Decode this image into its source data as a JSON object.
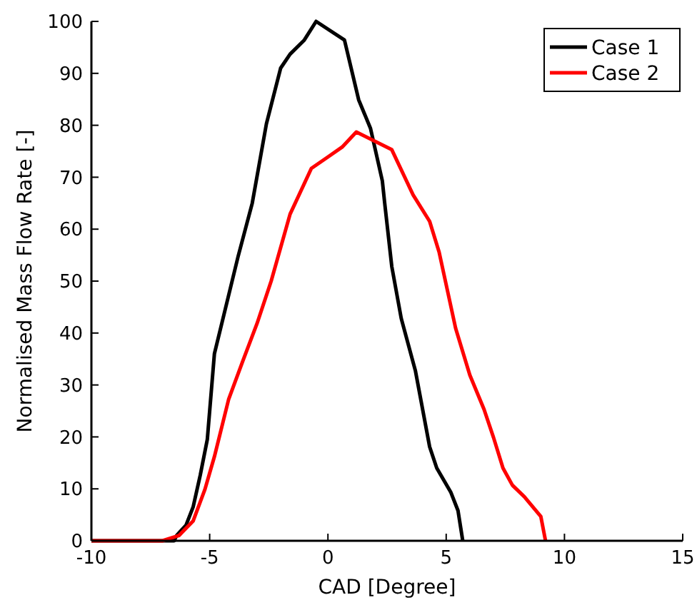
{
  "chart_data": {
    "type": "line",
    "xlabel": "CAD [Degree]",
    "ylabel": "Normalised Mass Flow Rate [-]",
    "xlim": [
      -10,
      15
    ],
    "ylim": [
      0,
      100
    ],
    "xticks": [
      -10,
      -5,
      0,
      5,
      10,
      15
    ],
    "yticks": [
      0,
      10,
      20,
      30,
      40,
      50,
      60,
      70,
      80,
      90,
      100
    ],
    "legend": "top right",
    "grid": false,
    "line_style": "solid",
    "marker": "none",
    "series": [
      {
        "name": "Case 1",
        "color": "#000000",
        "x": [
          -10,
          -6.5,
          -6.4,
          -6.0,
          -5.7,
          -5.4,
          -5.1,
          -4.8,
          -3.8,
          -3.2,
          -2.6,
          -2.0,
          -1.6,
          -1.0,
          -0.5,
          0.7,
          1.3,
          1.8,
          2.3,
          2.4,
          2.7,
          3.1,
          3.7,
          4.3,
          4.6,
          5.2,
          5.5,
          5.7
        ],
        "values": [
          0,
          0,
          1,
          3,
          6.5,
          12.6,
          19.5,
          36,
          54.7,
          65,
          80.3,
          91,
          93.7,
          96.4,
          100,
          96.4,
          84.9,
          79.4,
          69.3,
          65,
          52.8,
          42.8,
          32.7,
          18.1,
          14,
          9.3,
          5.8,
          0
        ]
      },
      {
        "name": "Case 2",
        "color": "#ff0000",
        "x": [
          -10,
          -7.0,
          -6.3,
          -5.7,
          -5.2,
          -4.8,
          -4.2,
          -3.6,
          -3.0,
          -2.4,
          -1.6,
          -0.7,
          0.0,
          0.6,
          1.2,
          2.7,
          3.6,
          4.3,
          4.7,
          5.4,
          6.0,
          6.6,
          7.0,
          7.4,
          7.8,
          8.3,
          9.0,
          9.2
        ],
        "values": [
          0,
          0,
          1,
          3.8,
          9.9,
          16.2,
          27.2,
          34.6,
          41.8,
          50,
          62.9,
          71.7,
          73.9,
          75.8,
          78.7,
          75.3,
          66.6,
          61.5,
          55.6,
          40.9,
          31.9,
          25.3,
          19.9,
          14,
          10.7,
          8.5,
          4.7,
          0
        ]
      }
    ]
  }
}
